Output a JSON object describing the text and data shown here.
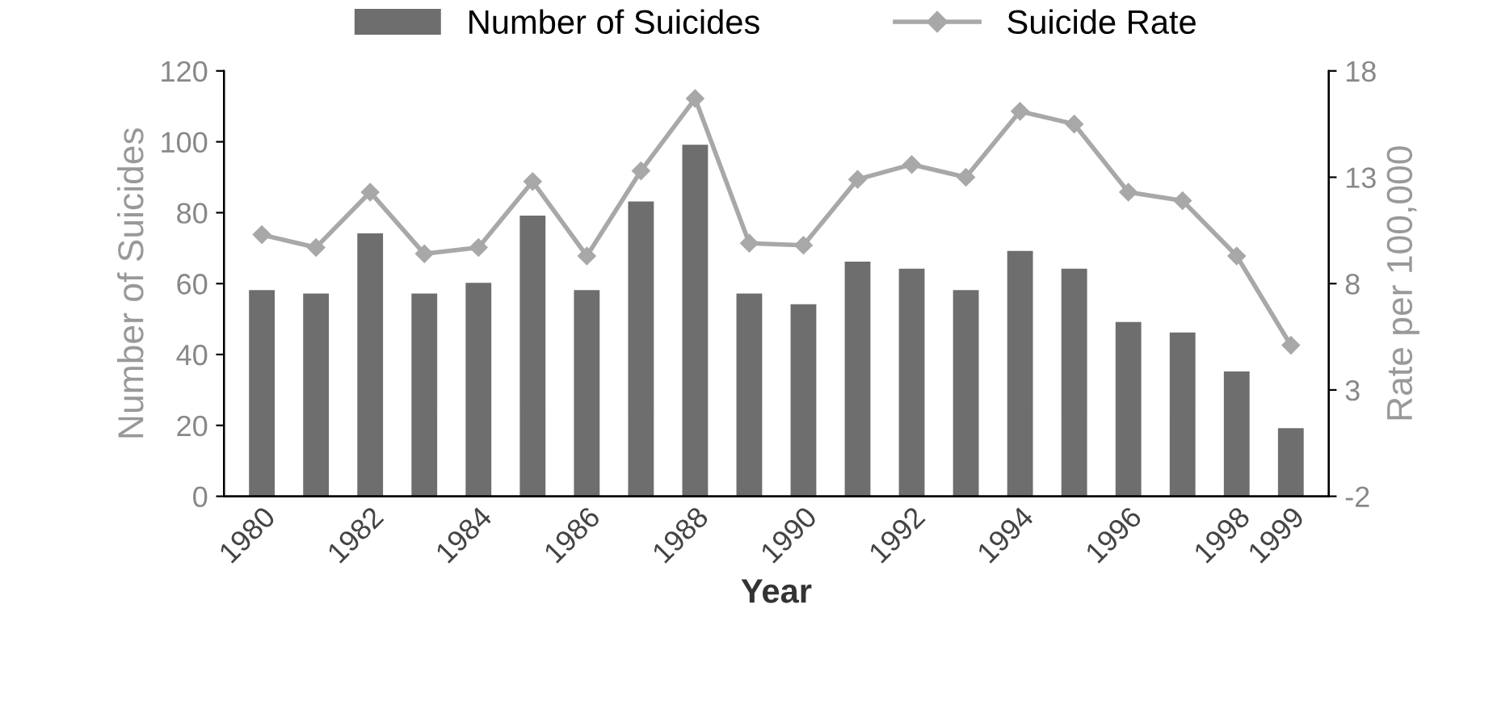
{
  "chart_data": {
    "type": "bar",
    "xlabel": "Year",
    "ylabel": "Number of Suicides",
    "y2label": "Rate per 100,000",
    "categories": [
      "1980",
      null,
      "1982",
      null,
      "1984",
      null,
      "1986",
      null,
      "1988",
      null,
      "1990",
      null,
      "1992",
      null,
      "1994",
      null,
      "1996",
      null,
      "1998",
      "1999"
    ],
    "series": [
      {
        "name": "Number of Suicides",
        "color": "#6e6e6e",
        "values": [
          58,
          57,
          74,
          57,
          60,
          79,
          58,
          83,
          99,
          57,
          54,
          66,
          64,
          58,
          69,
          64,
          49,
          46,
          35,
          19
        ]
      },
      {
        "name": "Suicide Rate",
        "type": "line",
        "axis": "y2",
        "color": "#a8a8a8",
        "marker": "diamond",
        "values": [
          10.3,
          9.7,
          12.3,
          9.4,
          9.7,
          12.8,
          9.3,
          13.3,
          16.7,
          9.9,
          9.8,
          12.9,
          13.6,
          13.0,
          16.1,
          15.5,
          12.3,
          11.9,
          9.3,
          5.1
        ]
      }
    ],
    "ylim": [
      0,
      120
    ],
    "yticks": [
      0,
      20,
      40,
      60,
      80,
      100,
      120
    ],
    "y2lim": [
      -2,
      18
    ],
    "y2ticks": [
      -2,
      3,
      8,
      13,
      18
    ],
    "legend": "top",
    "grid": false
  }
}
